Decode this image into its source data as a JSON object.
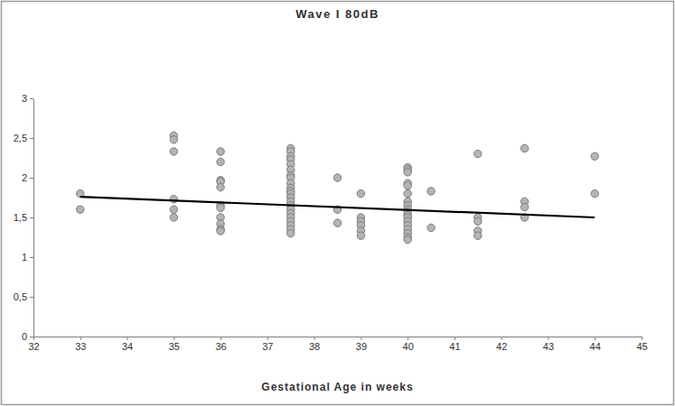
{
  "chart_data": {
    "type": "scatter",
    "title": "Wave I 80dB",
    "x_label": "Gestational Age in weeks",
    "x": [
      33,
      33,
      35,
      35,
      35,
      35,
      35,
      35,
      36,
      36,
      36,
      36,
      36,
      36,
      36,
      36,
      36,
      36,
      36,
      37.5,
      37.5,
      37.5,
      37.5,
      37.5,
      37.5,
      37.5,
      37.5,
      37.5,
      37.5,
      37.5,
      37.5,
      37.5,
      37.5,
      37.5,
      37.5,
      37.5,
      37.5,
      37.5,
      37.5,
      37.5,
      37.5,
      38.5,
      38.5,
      38.5,
      39,
      39,
      39,
      39,
      39,
      39,
      40,
      40,
      40,
      40,
      40,
      40,
      40,
      40,
      40,
      40,
      40,
      40,
      40,
      40,
      40,
      40,
      40,
      40,
      40.5,
      40.5,
      41.5,
      41.5,
      41.5,
      41.5,
      41.5,
      42.5,
      42.5,
      42.5,
      42.5,
      44,
      44
    ],
    "values": [
      1.8,
      1.6,
      2.53,
      2.48,
      2.33,
      1.73,
      1.6,
      1.5,
      2.33,
      2.2,
      1.97,
      1.95,
      1.88,
      1.65,
      1.62,
      1.5,
      1.42,
      1.35,
      1.33,
      2.37,
      2.33,
      2.27,
      2.23,
      2.17,
      2.1,
      2.03,
      2.0,
      1.93,
      1.87,
      1.83,
      1.8,
      1.75,
      1.7,
      1.65,
      1.6,
      1.55,
      1.5,
      1.45,
      1.4,
      1.35,
      1.3,
      2.0,
      1.6,
      1.43,
      1.8,
      1.5,
      1.45,
      1.4,
      1.33,
      1.27,
      2.13,
      2.1,
      2.07,
      1.93,
      1.9,
      1.8,
      1.7,
      1.65,
      1.6,
      1.57,
      1.53,
      1.5,
      1.45,
      1.4,
      1.35,
      1.3,
      1.25,
      1.22,
      1.83,
      1.37,
      2.3,
      1.5,
      1.45,
      1.33,
      1.27,
      2.37,
      1.7,
      1.63,
      1.5,
      2.27,
      1.8
    ],
    "trend_line": {
      "x": [
        33,
        44
      ],
      "values": [
        1.76,
        1.5
      ]
    },
    "color": "#b4b4b4",
    "marker": "circle",
    "xlim": [
      32,
      45
    ],
    "xticks": [
      32,
      33,
      34,
      35,
      36,
      37,
      38,
      39,
      40,
      41,
      42,
      43,
      44,
      45
    ],
    "ylim": [
      0,
      3
    ],
    "yticks": [
      0,
      {
        "value": 0.5,
        "label": "0,5"
      },
      1,
      {
        "value": 1.5,
        "label": "1,5"
      },
      2,
      {
        "value": 2.5,
        "label": "2,5"
      },
      3
    ],
    "grid": false
  }
}
